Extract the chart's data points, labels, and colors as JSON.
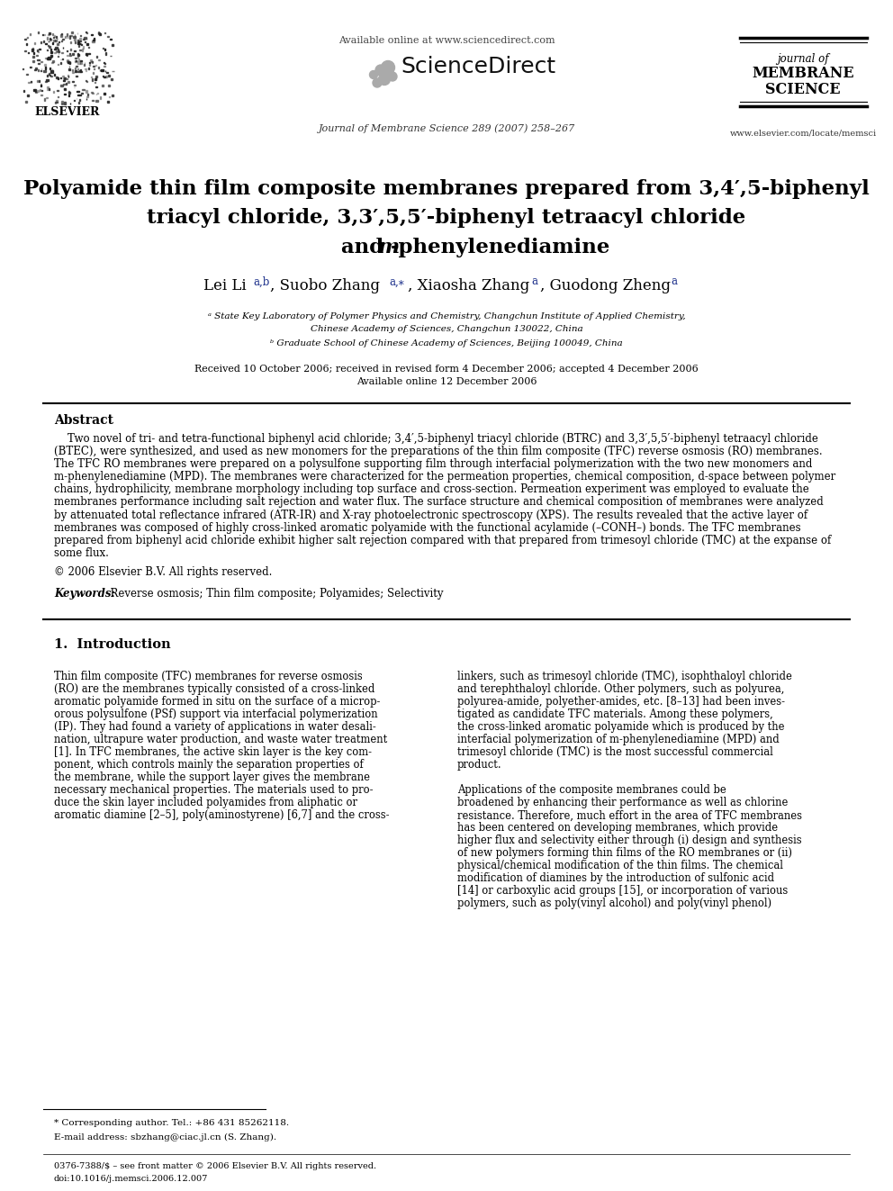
{
  "bg_color": "#ffffff",
  "header_available": "Available online at www.sciencedirect.com",
  "header_sciencedirect": "ScienceDirect",
  "header_journal_line1": "journal of",
  "header_journal_line2": "MEMBRANE",
  "header_journal_line3": "SCIENCE",
  "header_journal_ref": "Journal of Membrane Science 289 (2007) 258–267",
  "header_website": "www.elsevier.com/locate/memsci",
  "header_elsevier": "ELSEVIER",
  "title_line1": "Polyamide thin film composite membranes prepared from 3,4′,5-biphenyl",
  "title_line2": "triacyl chloride, 3,3′,5,5′-biphenyl tetraacyl chloride",
  "title_line3_and": "and ",
  "title_line3_m": "m",
  "title_line3_rest": "-phenylenediamine",
  "affil1a": "ᵃ State Key Laboratory of Polymer Physics and Chemistry, Changchun Institute of Applied Chemistry,",
  "affil1b": "Chinese Academy of Sciences, Changchun 130022, China",
  "affil2": "ᵇ Graduate School of Chinese Academy of Sciences, Beijing 100049, China",
  "received": "Received 10 October 2006; received in revised form 4 December 2006; accepted 4 December 2006",
  "available": "Available online 12 December 2006",
  "abstract_title": "Abstract",
  "abs_lines": [
    "Two novel of tri- and tetra-functional biphenyl acid chloride; 3,4′,5-biphenyl triacyl chloride (BTRC) and 3,3′,5,5′-biphenyl tetraacyl chloride",
    "(BTEC), were synthesized, and used as new monomers for the preparations of the thin film composite (TFC) reverse osmosis (RO) membranes.",
    "The TFC RO membranes were prepared on a polysulfone supporting film through interfacial polymerization with the two new monomers and",
    "m-phenylenediamine (MPD). The membranes were characterized for the permeation properties, chemical composition, d-space between polymer",
    "chains, hydrophilicity, membrane morphology including top surface and cross-section. Permeation experiment was employed to evaluate the",
    "membranes performance including salt rejection and water flux. The surface structure and chemical composition of membranes were analyzed",
    "by attenuated total reflectance infrared (ATR-IR) and X-ray photoelectronic spectroscopy (XPS). The results revealed that the active layer of",
    "membranes was composed of highly cross-linked aromatic polyamide with the functional acylamide (–CONH–) bonds. The TFC membranes",
    "prepared from biphenyl acid chloride exhibit higher salt rejection compared with that prepared from trimesoyl chloride (TMC) at the expanse of",
    "some flux."
  ],
  "copyright": "© 2006 Elsevier B.V. All rights reserved.",
  "keywords_label": "Keywords:",
  "keywords_text": "  Reverse osmosis; Thin film composite; Polyamides; Selectivity",
  "intro_title": "1.  Introduction",
  "intro_col1_lines": [
    "Thin film composite (TFC) membranes for reverse osmosis",
    "(RO) are the membranes typically consisted of a cross-linked",
    "aromatic polyamide formed in situ on the surface of a microp-",
    "orous polysulfone (PSf) support via interfacial polymerization",
    "(IP). They had found a variety of applications in water desali-",
    "nation, ultrapure water production, and waste water treatment",
    "[1]. In TFC membranes, the active skin layer is the key com-",
    "ponent, which controls mainly the separation properties of",
    "the membrane, while the support layer gives the membrane",
    "necessary mechanical properties. The materials used to pro-",
    "duce the skin layer included polyamides from aliphatic or",
    "aromatic diamine [2–5], poly(aminostyrene) [6,7] and the cross-"
  ],
  "intro_col2_lines": [
    "linkers, such as trimesoyl chloride (TMC), isophthaloyl chloride",
    "and terephthaloyl chloride. Other polymers, such as polyurea,",
    "polyurea-amide, polyether-amides, etc. [8–13] had been inves-",
    "tigated as candidate TFC materials. Among these polymers,",
    "the cross-linked aromatic polyamide which is produced by the",
    "interfacial polymerization of m-phenylenediamine (MPD) and",
    "trimesoyl chloride (TMC) is the most successful commercial",
    "product.",
    "",
    "Applications of the composite membranes could be",
    "broadened by enhancing their performance as well as chlorine",
    "resistance. Therefore, much effort in the area of TFC membranes",
    "has been centered on developing membranes, which provide",
    "higher flux and selectivity either through (i) design and synthesis",
    "of new polymers forming thin films of the RO membranes or (ii)",
    "physical/chemical modification of the thin films. The chemical",
    "modification of diamines by the introduction of sulfonic acid",
    "[14] or carboxylic acid groups [15], or incorporation of various",
    "polymers, such as poly(vinyl alcohol) and poly(vinyl phenol)"
  ],
  "footer_corr": "* Corresponding author. Tel.: +86 431 85262118.",
  "footer_email": "E-mail address: sbzhang@ciac.jl.cn (S. Zhang).",
  "footer_issn": "0376-7388/$ – see front matter © 2006 Elsevier B.V. All rights reserved.",
  "footer_doi": "doi:10.1016/j.memsci.2006.12.007"
}
